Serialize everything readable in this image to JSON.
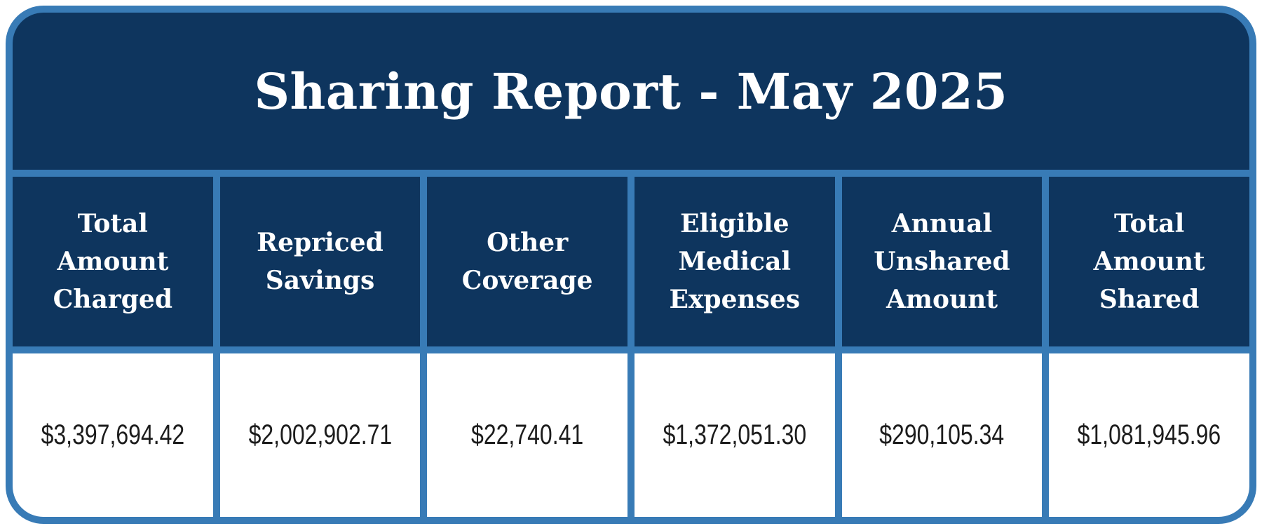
{
  "report": {
    "title": "Sharing Report - May 2025",
    "columns": [
      {
        "label": "Total\nAmount\nCharged",
        "value": "$3,397,694.42"
      },
      {
        "label": "Repriced\nSavings",
        "value": "$2,002,902.71"
      },
      {
        "label": "Other\nCoverage",
        "value": "$22,740.41"
      },
      {
        "label": "Eligible\nMedical\nExpenses",
        "value": "$1,372,051.30"
      },
      {
        "label": "Annual\nUnshared\nAmount",
        "value": "$290,105.34"
      },
      {
        "label": "Total\nAmount\nShared",
        "value": "$1,081,945.96"
      }
    ]
  },
  "colors": {
    "header_navy": "#0E355E",
    "border_blue": "#387BB6",
    "cell_white": "#FFFFFF",
    "title_text": "#FFFFFF",
    "value_text": "#1C1C1C"
  },
  "chart_data": {
    "type": "table",
    "title": "Sharing Report - May 2025",
    "columns": [
      "Total Amount Charged",
      "Repriced Savings",
      "Other Coverage",
      "Eligible Medical Expenses",
      "Annual Unshared Amount",
      "Total Amount Shared"
    ],
    "rows": [
      [
        "$3,397,694.42",
        "$2,002,902.71",
        "$22,740.41",
        "$1,372,051.30",
        "$290,105.34",
        "$1,081,945.96"
      ]
    ],
    "values_numeric": [
      3397694.42,
      2002902.71,
      22740.41,
      1372051.3,
      290105.34,
      1081945.96
    ],
    "layout": "single title band, one header row of 6 columns, one data row of 6 cells"
  }
}
